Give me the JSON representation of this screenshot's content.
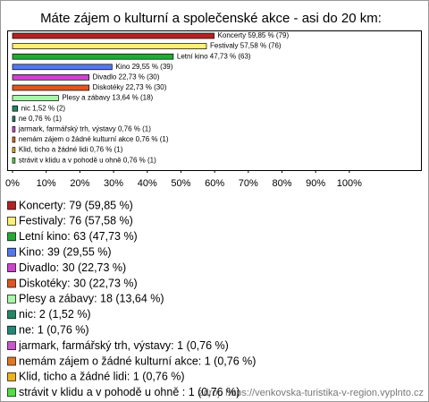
{
  "chart_data": {
    "type": "bar",
    "orientation": "horizontal",
    "title": "Máte zájem o kulturní a společenské akce - asi do 20 km:",
    "categories": [
      "Koncerty",
      "Festivaly",
      "Letní kino",
      "Kino",
      "Divadlo",
      "Diskotéky",
      "Plesy a zábavy",
      "nic",
      "ne",
      "jarmark, farmářský trh, výstavy",
      "nemám zájem o žádné kulturní akce",
      "Klid,  ticho  a  žádné lidi",
      "strávit v klidu a v pohodě u ohně"
    ],
    "values": [
      59.85,
      57.58,
      47.73,
      29.55,
      22.73,
      22.73,
      13.64,
      1.52,
      0.76,
      0.76,
      0.76,
      0.76,
      0.76
    ],
    "value_labels": [
      "Koncerty 59,85 % (79)",
      "Festivaly 57,58 % (76)",
      "Letní kino 47,73 % (63)",
      "Kino 29,55 % (39)",
      "Divadlo 22,73 % (30)",
      "Diskotéky 22,73 % (30)",
      "Plesy a zábavy 13,64 % (18)",
      "nic 1,52 % (2)",
      "ne 0,76 % (1)",
      "jarmark, farmářský trh, výstavy 0,76 % (1)",
      "nemám zájem o žádné kulturní akce 0,76 % (1)",
      "Klid, ticho a žádné lidi 0,76 % (1)",
      "strávit v klidu a v pohodě u ohně   0,76 % (1)"
    ],
    "legend_labels": [
      "Koncerty: 79 (59,85 %)",
      "Festivaly: 76 (57,58 %)",
      "Letní kino: 63 (47,73 %)",
      "Kino: 39 (29,55 %)",
      "Divadlo: 30 (22,73 %)",
      "Diskotéky: 30 (22,73 %)",
      "Plesy a zábavy: 18 (13,64 %)",
      "nic: 2 (1,52 %)",
      "ne: 1 (0,76 %)",
      "jarmark, farmářský trh, výstavy: 1 (0,76 %)",
      "nemám zájem o žádné kulturní akce: 1 (0,76 %)",
      "Klid,  ticho  a  žádné lidi: 1 (0,76 %)",
      "strávit v klidu a v pohodě u ohně  : 1 (0,76 %)"
    ],
    "colors": [
      "#b22222",
      "#ffee77",
      "#22aa33",
      "#5577ee",
      "#cc44cc",
      "#e05522",
      "#aaf5aa",
      "#228866",
      "#228877",
      "#cc55cc",
      "#e07722",
      "#f0b020",
      "#55dd44"
    ],
    "xlim": [
      0,
      121
    ],
    "xticks": [
      {
        "value": 0,
        "label": "0%"
      },
      {
        "value": 10,
        "label": "10%"
      },
      {
        "value": 20,
        "label": "20%"
      },
      {
        "value": 30,
        "label": "30%"
      },
      {
        "value": 40,
        "label": "40%"
      },
      {
        "value": 50,
        "label": "50%"
      },
      {
        "value": 60,
        "label": "60%"
      },
      {
        "value": 70,
        "label": "70%"
      },
      {
        "value": 80,
        "label": "80%"
      },
      {
        "value": 90,
        "label": "90%"
      },
      {
        "value": 100,
        "label": "100%"
      }
    ],
    "source": "zdroj: https://venkovska-turistika-v-region.vyplnto.cz"
  }
}
